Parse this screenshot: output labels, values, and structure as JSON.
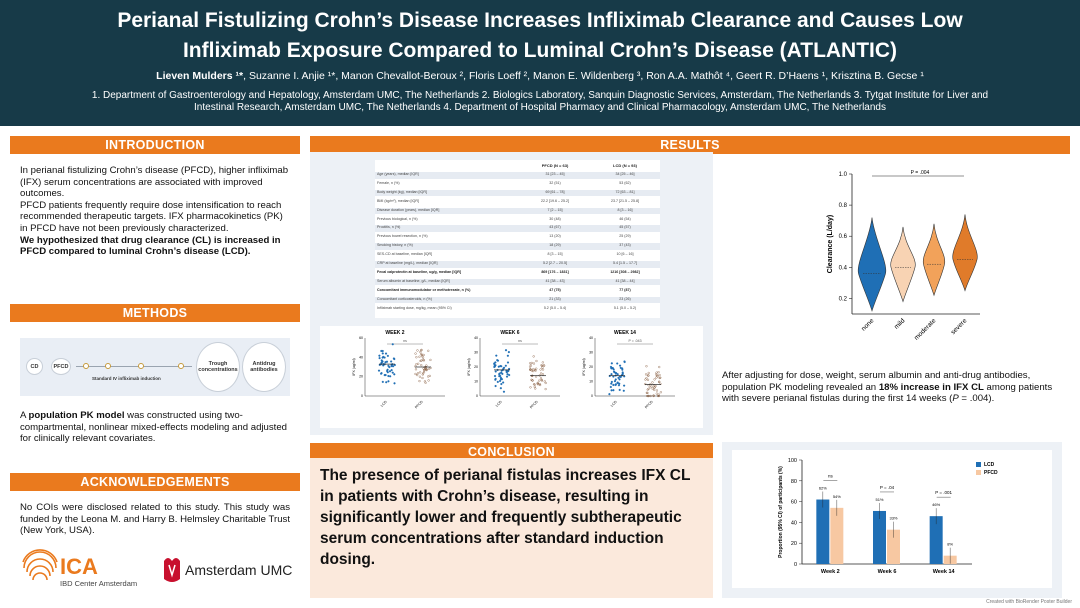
{
  "header": {
    "title_line1": "Perianal Fistulizing Crohn’s Disease Increases Infliximab Clearance and Causes Low",
    "title_line2": "Infliximab Exposure Compared to Luminal Crohn’s Disease (ATLANTIC)",
    "first_author": "Lieven Mulders ¹*",
    "other_authors": ", Suzanne I. Anjie ¹*, Manon Chevallot-Beroux ², Floris Loeff ², Manon E. Wildenberg ³, Ron A.A. Mathôt ⁴, Geert R. D’Haens ¹, Krisztina B. Gecse ¹",
    "affiliations_line1": "1.  Department of Gastroenterology and Hepatology, Amsterdam UMC, The Netherlands 2. Biologics Laboratory, Sanquin Diagnostic Services, Amsterdam, The Netherlands 3. Tytgat Institute for Liver and",
    "affiliations_line2": "Intestinal Research, Amsterdam UMC, The Netherlands 4. Department of Hospital Pharmacy and Clinical Pharmacology, Amsterdam UMC, The Netherlands"
  },
  "introduction": {
    "heading": "INTRODUCTION",
    "p1": "In perianal fistulizing Crohn’s disease (PFCD), higher infliximab (IFX) serum concentrations are associated with improved outcomes.",
    "p2": "PFCD patients frequently require dose intensification to reach recommended therapeutic targets. IFX pharmacokinetics (PK) in PFCD have not been previously characterized.",
    "p3": "We hypothesized that drug clearance (CL) is increased in PFCD compared to luminal Crohn’s disease (LCD)."
  },
  "methods": {
    "heading": "METHODS",
    "diagram": {
      "cd": "CD",
      "pfcd": "PFCD",
      "induction": "Standard IV infliximab induction",
      "trough": "Trough concentrations",
      "antidrug": "Antidrug antibodies"
    },
    "text_pre": "A ",
    "text_bold": "population PK model",
    "text_post": " was constructed using two-compartmental, nonlinear mixed-effects modeling and adjusted for clinically relevant covariates."
  },
  "acknowledgements": {
    "heading": "ACKNOWLEDGEMENTS",
    "text": "No COIs were disclosed related to this study. This study was funded by the Leona M. and Harry B. Helmsley Charitable Trust (New York, USA).",
    "ica_logo": "ICA",
    "ica_sub": "IBD Center Amsterdam",
    "umc_logo": "Amsterdam UMC"
  },
  "results": {
    "heading": "RESULTS",
    "table": {
      "col_pfcd": "PFCD (N = 63)",
      "col_lcd": "LCD (N = 93)",
      "rows": [
        {
          "label": "Age (years), median [IQR]",
          "pfcd": "31 [23 – 45]",
          "lcd": "34 [25 – 46]",
          "shade": true,
          "bold": false
        },
        {
          "label": "Female, n (%)",
          "pfcd": "32 (51)",
          "lcd": "53 (62)",
          "shade": false,
          "bold": false
        },
        {
          "label": "Body weight (kg), median [IQR]",
          "pfcd": "69 [61 – 78]",
          "lcd": "72 [63 – 81]",
          "shade": true,
          "bold": false
        },
        {
          "label": "BMI (kg/m²), median [IQR]",
          "pfcd": "22.2 [19.6 – 25.2]",
          "lcd": "23.7 [21.5 – 25.8]",
          "shade": false,
          "bold": false
        },
        {
          "label": "Disease duration (years), median [IQR]",
          "pfcd": "7 [2 – 15]",
          "lcd": "8 [3 – 16]",
          "shade": true,
          "bold": false
        },
        {
          "label": "Previous biological, n (%)",
          "pfcd": "30 (48)",
          "lcd": "46 (54)",
          "shade": false,
          "bold": false
        },
        {
          "label": "Proctitis, n (%)",
          "pfcd": "43 (67)",
          "lcd": "45 (57)",
          "shade": true,
          "bold": false
        },
        {
          "label": "Previous bowel resection, n (%)",
          "pfcd": "13 (20)",
          "lcd": "25 (29)",
          "shade": false,
          "bold": false
        },
        {
          "label": "Smoking history, n (%)",
          "pfcd": "18 (29)",
          "lcd": "37 (43)",
          "shade": true,
          "bold": false
        },
        {
          "label": "SES-CD at baseline, median [IQR]",
          "pfcd": "8 [3 – 15]",
          "lcd": "10 [6 – 16]",
          "shade": false,
          "bold": false
        },
        {
          "label": "CRP at baseline (mg/L), median [IQR]",
          "pfcd": "5.2 [2.7 – 20.5]",
          "lcd": "5.4 [1.5 – 17.7]",
          "shade": true,
          "bold": false
        },
        {
          "label": "Fecal calprotectin at baseline, ug/g, median [IQR]",
          "pfcd": "869 [176 – 1831]",
          "lcd": "1216 [308 – 2982]",
          "shade": false,
          "bold": true
        },
        {
          "label": "Serum albumin at baseline, g/L, median [IQR]",
          "pfcd": "41 [38 – 43]",
          "lcd": "41 [38 – 44]",
          "shade": true,
          "bold": false
        },
        {
          "label": "Concomitant immunomodulator or methotrexate, n (%)",
          "pfcd": "47 (75)",
          "lcd": "77 (87)",
          "shade": false,
          "bold": true
        },
        {
          "label": "Concomitant corticosteroids, n (%)",
          "pfcd": "21 (33)",
          "lcd": "23 (26)",
          "shade": true,
          "bold": false
        },
        {
          "label": "Infliximab starting dose, mg/kg, mean (95% CI)",
          "pfcd": "5.2 (5.0 – 5.4)",
          "lcd": "5.1 (5.0 – 5.2)",
          "shade": false,
          "bold": false
        }
      ]
    },
    "dotplots": [
      {
        "title": "WEEK 2",
        "sig": "ns",
        "ylabel": "IFX (ug/ml)",
        "ymax": 60,
        "ticks": [
          "0",
          "20",
          "40",
          "60"
        ],
        "x1": "LCD",
        "x2": "PFCD"
      },
      {
        "title": "WEEK 6",
        "sig": "ns",
        "ylabel": "IFX (ug/ml)",
        "ymax": 40,
        "ticks": [
          "0",
          "10",
          "20",
          "30",
          "40"
        ],
        "x1": "LCD",
        "x2": "PFCD"
      },
      {
        "title": "WEEK 14",
        "sig": "P = .043",
        "ylabel": "IFX (ug/ml)",
        "ymax": 40,
        "ticks": [
          "0",
          "10",
          "20",
          "30",
          "40"
        ],
        "x1": "LCD",
        "x2": "PFCD"
      }
    ],
    "violin": {
      "p_label": "P = .004",
      "ylabel": "Clearance (L/day)",
      "yticks": [
        "0.2",
        "0.4",
        "0.6",
        "0.8",
        "1.0"
      ],
      "categories": [
        "none",
        "mild",
        "moderate",
        "severe"
      ]
    },
    "finding_pre": "After adjusting for dose, weight, serum albumin and anti-drug antibodies, population PK modeling revealed an ",
    "finding_bold": "18% increase in IFX CL",
    "finding_mid": " among patients with severe perianal fistulas during the first 14 weeks (",
    "finding_p": "P",
    "finding_post": " = .004)."
  },
  "conclusion": {
    "heading": "CONCLUSION",
    "text": "The presence of perianal fistulas increases IFX CL in patients with Crohn’s disease, resulting in significantly lower and frequently subtherapeutic serum concentrations after standard induction dosing."
  },
  "chart_data": {
    "type": "bar",
    "title": "",
    "xlabel": "",
    "ylabel": "Proportion (95% CI) of participants (%)",
    "ylim": [
      0,
      100
    ],
    "yticks": [
      "0",
      "20",
      "40",
      "60",
      "80",
      "100"
    ],
    "categories": [
      "Week 2",
      "Week 6",
      "Week 14"
    ],
    "series": [
      {
        "name": "LCD",
        "color": "#1f6fb5",
        "values": [
          62,
          51,
          46
        ],
        "labels": [
          "62%",
          "51%",
          "46%"
        ]
      },
      {
        "name": "PFCD",
        "color": "#f7c8a2",
        "values": [
          54,
          33,
          8
        ],
        "labels": [
          "54%",
          "33%",
          "8%"
        ]
      }
    ],
    "annotations": [
      "ns",
      "P = .04",
      "P = .001"
    ],
    "legend": "top-right"
  },
  "footer": {
    "created_with": "Created with BioRender Poster Builder"
  }
}
